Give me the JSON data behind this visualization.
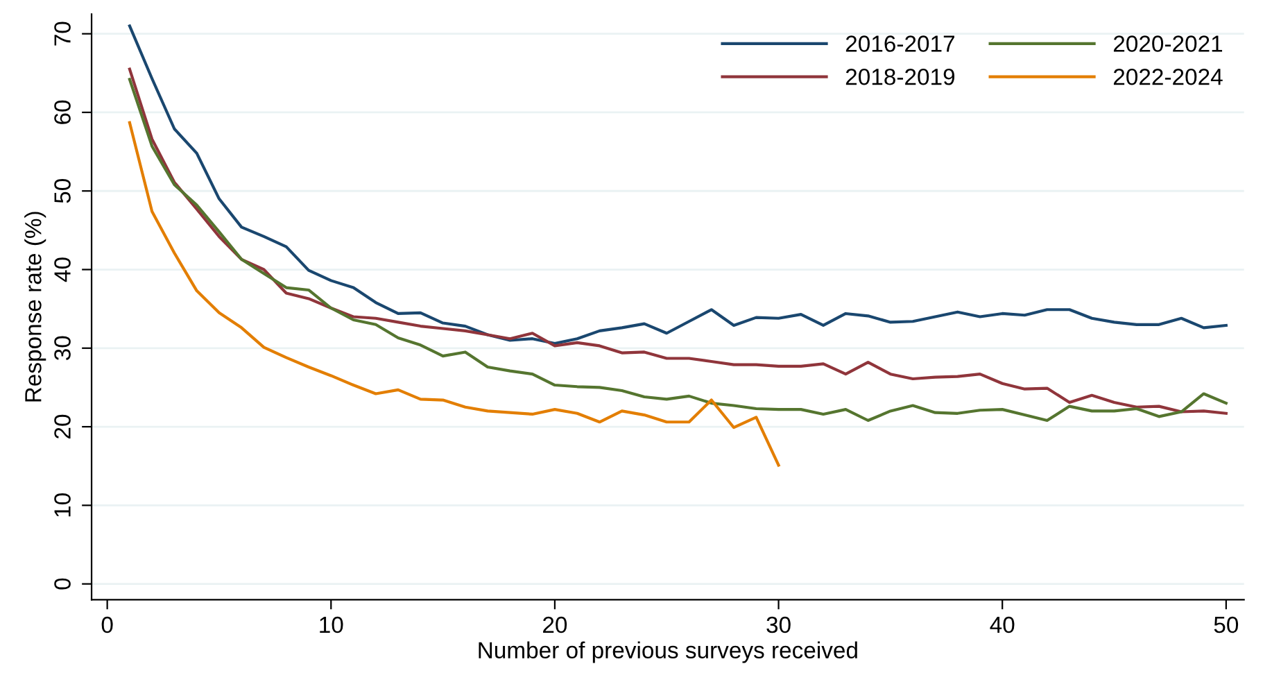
{
  "chart_data": {
    "type": "line",
    "xlabel": "Number of previous surveys received",
    "ylabel": "Response rate (%)",
    "x": [
      1,
      2,
      3,
      4,
      5,
      6,
      7,
      8,
      9,
      10,
      11,
      12,
      13,
      14,
      15,
      16,
      17,
      18,
      19,
      20,
      21,
      22,
      23,
      24,
      25,
      26,
      27,
      28,
      29,
      30,
      31,
      32,
      33,
      34,
      35,
      36,
      37,
      38,
      39,
      40,
      41,
      42,
      43,
      44,
      45,
      46,
      47,
      48,
      49,
      50
    ],
    "series": [
      {
        "name": "2016-2017",
        "color": "#1a476f",
        "values": [
          71,
          64.3,
          57.9,
          54.8,
          49.0,
          45.4,
          44.2,
          42.9,
          39.9,
          38.6,
          37.7,
          35.8,
          34.4,
          34.5,
          33.2,
          32.8,
          31.7,
          31.0,
          31.2,
          30.6,
          31.2,
          32.2,
          32.6,
          33.1,
          31.9,
          33.4,
          34.9,
          32.9,
          33.9,
          33.8,
          34.3,
          32.9,
          34.4,
          34.1,
          33.3,
          33.4,
          34.0,
          34.6,
          34.0,
          34.4,
          34.2,
          34.9,
          34.9,
          33.8,
          33.3,
          33.0,
          33.0,
          33.8,
          32.6,
          32.9
        ]
      },
      {
        "name": "2018-2019",
        "color": "#90353b",
        "values": [
          65.5,
          56.6,
          51.1,
          47.7,
          44.2,
          41.3,
          40.0,
          37.0,
          36.3,
          35.1,
          34.0,
          33.8,
          33.3,
          32.8,
          32.5,
          32.2,
          31.7,
          31.2,
          31.9,
          30.3,
          30.7,
          30.3,
          29.4,
          29.5,
          28.7,
          28.7,
          28.3,
          27.9,
          27.9,
          27.7,
          27.7,
          28.0,
          26.7,
          28.2,
          26.7,
          26.1,
          26.3,
          26.4,
          26.7,
          25.5,
          24.8,
          24.9,
          23.1,
          24.0,
          23.1,
          22.5,
          22.6,
          21.9,
          22.0,
          21.7
        ]
      },
      {
        "name": "2020-2021",
        "color": "#55752f",
        "values": [
          64.2,
          55.7,
          50.8,
          48.2,
          44.8,
          41.3,
          39.5,
          37.7,
          37.4,
          35.1,
          33.6,
          33.0,
          31.3,
          30.4,
          29.0,
          29.5,
          27.6,
          27.1,
          26.7,
          25.3,
          25.1,
          25.0,
          24.6,
          23.8,
          23.5,
          23.9,
          23.0,
          22.7,
          22.3,
          22.2,
          22.2,
          21.6,
          22.2,
          20.8,
          22.0,
          22.7,
          21.8,
          21.7,
          22.1,
          22.2,
          21.5,
          20.8,
          22.6,
          22.0,
          22.0,
          22.3,
          21.3,
          21.9,
          24.2,
          23.0
        ]
      },
      {
        "name": "2022-2024",
        "color": "#e37e00",
        "values": [
          58.7,
          47.4,
          42.1,
          37.3,
          34.5,
          32.6,
          30.1,
          28.8,
          27.6,
          26.5,
          25.3,
          24.2,
          24.7,
          23.5,
          23.4,
          22.5,
          22.0,
          21.8,
          21.6,
          22.2,
          21.7,
          20.6,
          22.0,
          21.5,
          20.6,
          20.6,
          23.4,
          19.9,
          21.2,
          15.1,
          null,
          null,
          null,
          null,
          null,
          null,
          null,
          null,
          null,
          null,
          null,
          null,
          null,
          null,
          null,
          null,
          null,
          null,
          null,
          null
        ]
      }
    ],
    "xlim": [
      -0.7,
      50.8
    ],
    "xticks": [
      0,
      10,
      20,
      30,
      40,
      50
    ],
    "ylim": [
      -2,
      72.5
    ],
    "yticks": [
      0,
      10,
      20,
      30,
      40,
      50,
      60,
      70
    ],
    "grid": "y",
    "legend": "top right",
    "marker": "none",
    "line_style": "solid"
  }
}
